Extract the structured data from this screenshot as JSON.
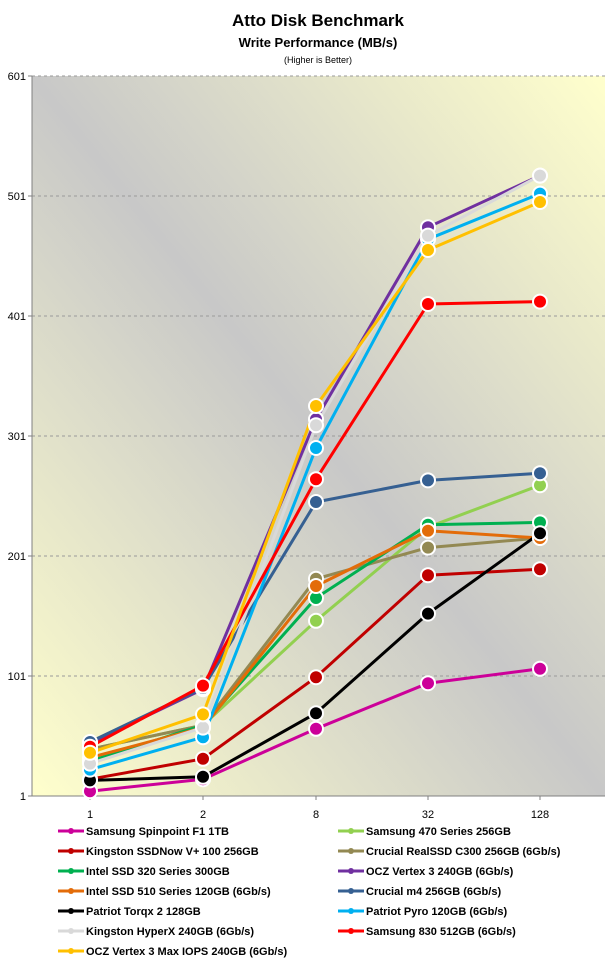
{
  "chart_data": {
    "type": "line",
    "title": "Atto Disk Benchmark",
    "subtitle": "Write Performance (MB/s)",
    "note": "(Higher is Better)",
    "xlabel": "",
    "ylabel": "",
    "x": [
      "1",
      "2",
      "8",
      "32",
      "128"
    ],
    "y_ticks": [
      "1",
      "101",
      "201",
      "301",
      "401",
      "501",
      "601"
    ],
    "ylim": [
      1,
      601
    ],
    "grid": true,
    "legend_position": "bottom",
    "series": [
      {
        "name": "Samsung Spinpoint F1 1TB",
        "color": "#cc0099",
        "values": [
          5,
          15,
          57,
          95,
          107
        ]
      },
      {
        "name": "Samsung 470 Series 256GB",
        "color": "#92d050",
        "values": [
          40,
          60,
          147,
          225,
          260
        ]
      },
      {
        "name": "Kingston SSDNow V+ 100 256GB",
        "color": "#c00000",
        "values": [
          15,
          32,
          100,
          185,
          190
        ]
      },
      {
        "name": "Crucial RealSSD C300 256GB (6Gb/s)",
        "color": "#938953",
        "values": [
          40,
          60,
          182,
          208,
          216
        ]
      },
      {
        "name": "Intel SSD 320 Series 300GB",
        "color": "#00b050",
        "values": [
          30,
          60,
          166,
          227,
          229
        ]
      },
      {
        "name": "OCZ Vertex 3 240GB (6Gb/s)",
        "color": "#7030a0",
        "values": [
          45,
          90,
          315,
          475,
          518
        ]
      },
      {
        "name": "Intel SSD 510 Series 120GB (6Gb/s)",
        "color": "#e36c09",
        "values": [
          33,
          58,
          176,
          222,
          216
        ]
      },
      {
        "name": "Crucial m4 256GB (6Gb/s)",
        "color": "#366092",
        "values": [
          46,
          91,
          246,
          264,
          270
        ]
      },
      {
        "name": "Patriot Torqx 2 128GB",
        "color": "#000000",
        "values": [
          14,
          17,
          70,
          153,
          220
        ]
      },
      {
        "name": "Patriot Pyro 120GB (6Gb/s)",
        "color": "#00b0f0",
        "values": [
          23,
          50,
          291,
          465,
          503
        ]
      },
      {
        "name": "Kingston HyperX 240GB (6Gb/s)",
        "color": "#d9d9d9",
        "values": [
          28,
          58,
          310,
          468,
          518
        ]
      },
      {
        "name": "Samsung 830 512GB (6Gb/s)",
        "color": "#ff0000",
        "values": [
          42,
          93,
          265,
          411,
          413
        ]
      },
      {
        "name": "OCZ Vertex 3 Max IOPS 240GB (6Gb/s)",
        "color": "#ffc000",
        "values": [
          37,
          69,
          326,
          456,
          496
        ]
      }
    ]
  }
}
